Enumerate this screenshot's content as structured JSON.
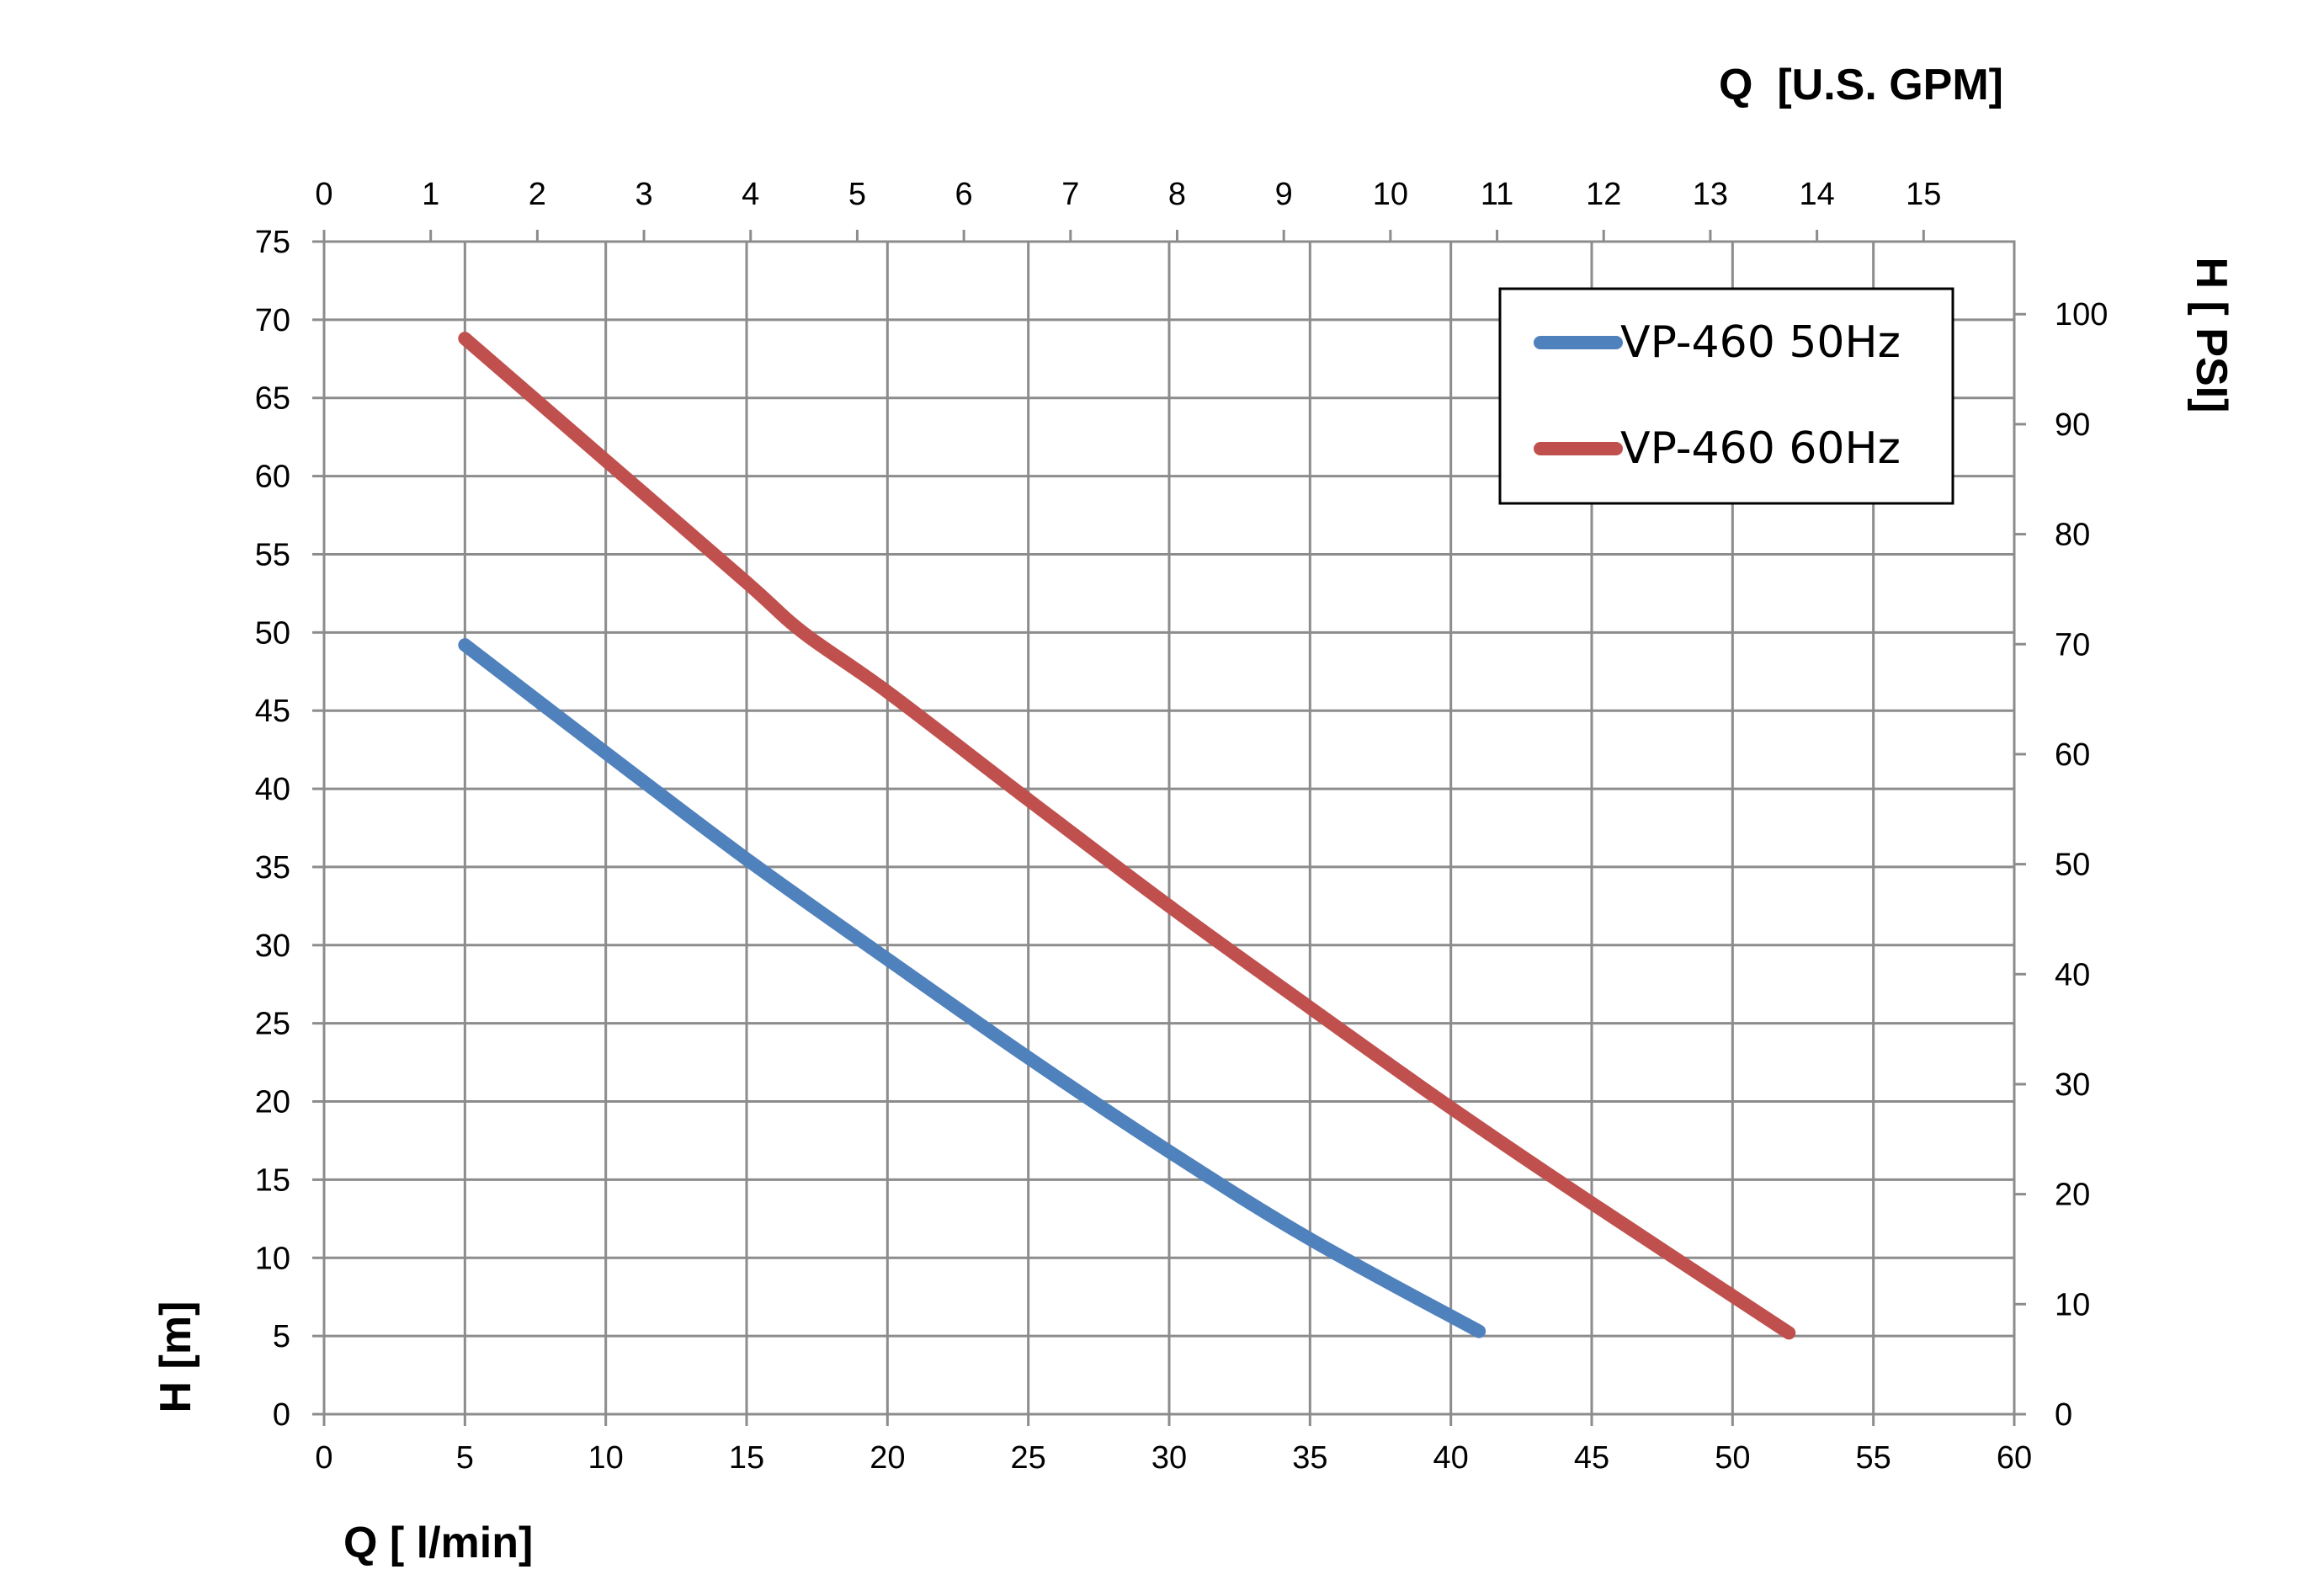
{
  "chart_data": {
    "type": "line",
    "x_bottom": {
      "label": "Q [ l/min]",
      "range": [
        0,
        60
      ],
      "ticks": [
        0,
        5,
        10,
        15,
        20,
        25,
        30,
        35,
        40,
        45,
        50,
        55,
        60
      ]
    },
    "x_top": {
      "label": "Q  [U.S. GPM]",
      "range": [
        0,
        15.85
      ],
      "ticks": [
        0,
        1,
        2,
        3,
        4,
        5,
        6,
        7,
        8,
        9,
        10,
        11,
        12,
        13,
        14,
        15
      ]
    },
    "y_left": {
      "label": "H [m]",
      "range": [
        0,
        75
      ],
      "ticks": [
        0,
        5,
        10,
        15,
        20,
        25,
        30,
        35,
        40,
        45,
        50,
        55,
        60,
        65,
        70,
        75
      ]
    },
    "y_right": {
      "label": "H [ PSI]",
      "range": [
        0,
        106.6
      ],
      "ticks": [
        0,
        10,
        20,
        30,
        40,
        50,
        60,
        70,
        80,
        90,
        100
      ]
    },
    "grid": true,
    "legend_position": "top-right",
    "series": [
      {
        "name": "VP-460 50Hz",
        "color": "#4f81bd",
        "points": [
          [
            5,
            49.2
          ],
          [
            10,
            42.3
          ],
          [
            15,
            35.5
          ],
          [
            20,
            29.1
          ],
          [
            25,
            22.8
          ],
          [
            30,
            16.8
          ],
          [
            35,
            11.2
          ],
          [
            41,
            5.3
          ]
        ]
      },
      {
        "name": "VP-460 60Hz",
        "color": "#c0504d",
        "points": [
          [
            5,
            68.8
          ],
          [
            10,
            61.0
          ],
          [
            15,
            53.2
          ],
          [
            17,
            50.0
          ],
          [
            20,
            46.2
          ],
          [
            25,
            39.3
          ],
          [
            30,
            32.5
          ],
          [
            35,
            26.0
          ],
          [
            40,
            19.6
          ],
          [
            45,
            13.5
          ],
          [
            52,
            5.2
          ]
        ]
      }
    ]
  }
}
